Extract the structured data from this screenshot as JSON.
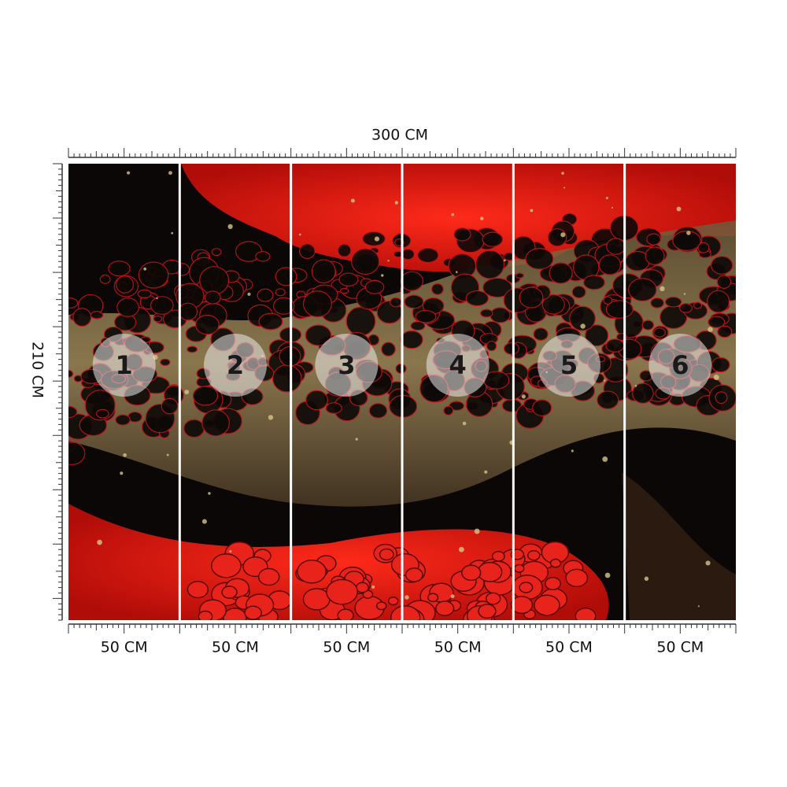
{
  "dimensions": {
    "width": "300 CM",
    "height": "210 CM"
  },
  "panels": [
    {
      "number": "1",
      "width": "50 CM"
    },
    {
      "number": "2",
      "width": "50 CM"
    },
    {
      "number": "3",
      "width": "50 CM"
    },
    {
      "number": "4",
      "width": "50 CM"
    },
    {
      "number": "5",
      "width": "50 CM"
    },
    {
      "number": "6",
      "width": "50 CM"
    }
  ]
}
